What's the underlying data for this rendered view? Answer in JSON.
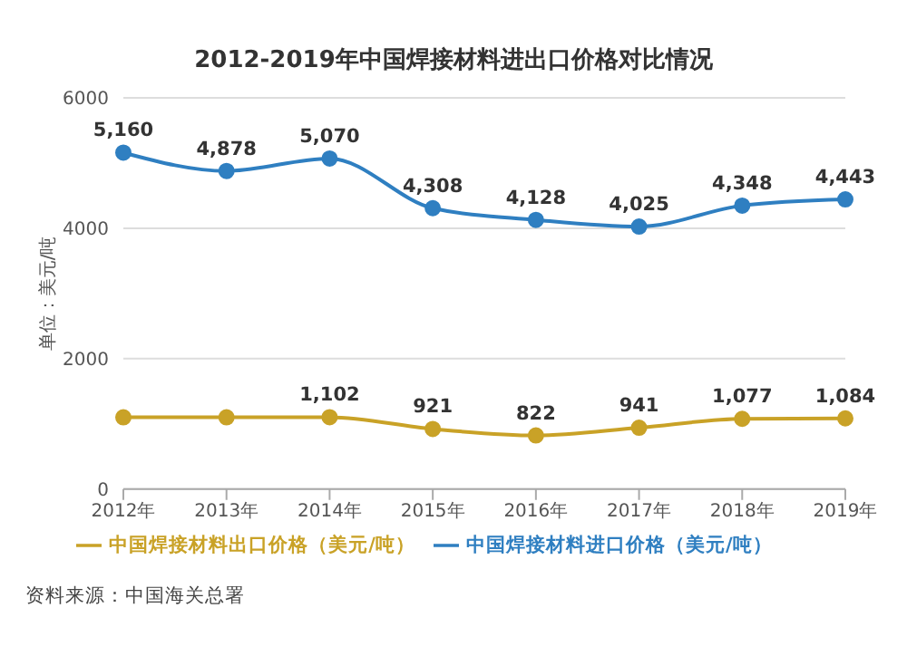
{
  "chart_data": {
    "type": "line",
    "title": "2012-2019年中国焊接材料进出口价格对比情况",
    "ylabel": "单位：美元/吨",
    "categories": [
      "2012年",
      "2013年",
      "2014年",
      "2015年",
      "2016年",
      "2017年",
      "2018年",
      "2019年"
    ],
    "series": [
      {
        "name": "中国焊接材料进口价格（美元/吨）",
        "color": "#2f7fc1",
        "values": [
          5160,
          4878,
          5070,
          4308,
          4128,
          4025,
          4348,
          4443
        ],
        "value_labels": [
          "5,160",
          "4,878",
          "5,070",
          "4,308",
          "4,128",
          "4,025",
          "4,348",
          "4,443"
        ]
      },
      {
        "name": "中国焊接材料出口价格（美元/吨）",
        "color": "#c9a227",
        "values": [
          1100,
          1100,
          1102,
          921,
          822,
          941,
          1077,
          1084
        ],
        "value_labels": [
          null,
          null,
          "1,102",
          "921",
          "822",
          "941",
          "1,077",
          "1,084"
        ]
      }
    ],
    "ylim": [
      0,
      6000
    ],
    "yticks": [
      0,
      2000,
      4000,
      6000
    ],
    "grid": "y",
    "legend": "bottom",
    "marker": "circle",
    "line_style": "solid",
    "annotations": [
      "资料来源：中国海关总署"
    ]
  }
}
